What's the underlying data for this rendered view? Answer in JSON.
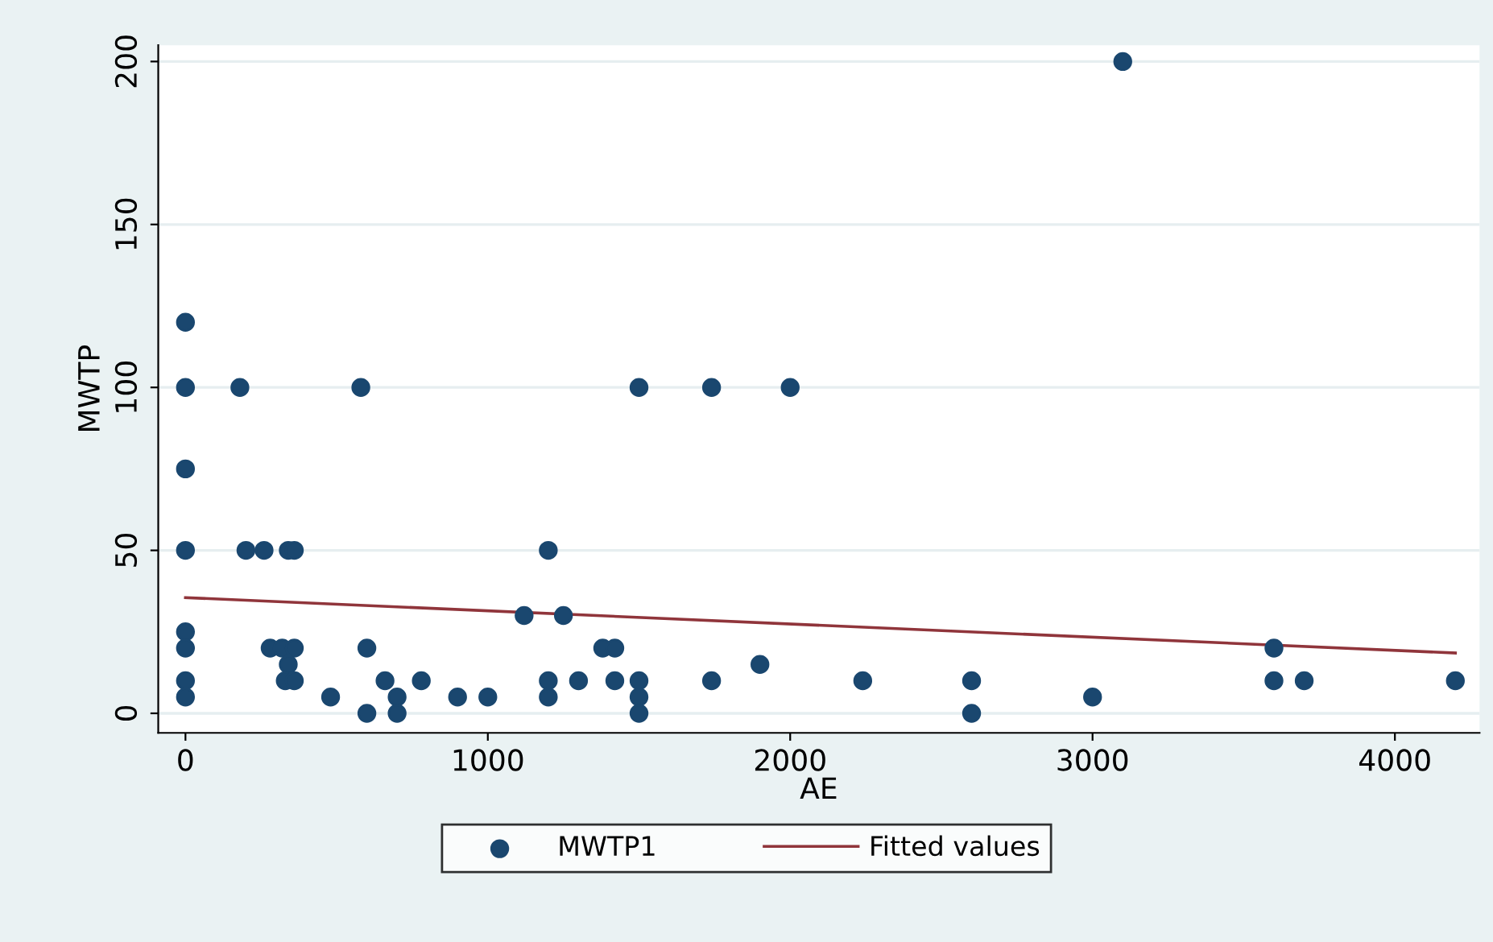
{
  "chart_data": {
    "type": "scatter",
    "xlabel": "AE",
    "ylabel": "MWTP",
    "xlim": [
      -90,
      4280
    ],
    "ylim": [
      -6,
      205
    ],
    "xticks": [
      0,
      1000,
      2000,
      3000,
      4000
    ],
    "yticks": [
      0,
      50,
      100,
      150,
      200
    ],
    "grid": "y",
    "legend": "bottom",
    "marker": "circle",
    "series": [
      {
        "name": "MWTP1",
        "color": "#1a476f",
        "x": [
          0,
          0,
          0,
          0,
          0,
          0,
          0,
          0,
          180,
          580,
          1500,
          1740,
          2000,
          3100,
          200,
          260,
          340,
          360,
          1200,
          1120,
          1250,
          280,
          320,
          360,
          600,
          1380,
          1420,
          3600,
          340,
          1900,
          330,
          360,
          660,
          780,
          1200,
          1300,
          1420,
          1500,
          1740,
          2240,
          2600,
          3600,
          3700,
          4200,
          480,
          700,
          900,
          1000,
          1200,
          1500,
          3000,
          600,
          700,
          1500,
          2600
        ],
        "values": [
          120,
          100,
          75,
          50,
          25,
          20,
          10,
          5,
          100,
          100,
          100,
          100,
          100,
          200,
          50,
          50,
          50,
          50,
          50,
          30,
          30,
          20,
          20,
          20,
          20,
          20,
          20,
          20,
          15,
          15,
          10,
          10,
          10,
          10,
          10,
          10,
          10,
          10,
          10,
          10,
          10,
          10,
          10,
          10,
          5,
          5,
          5,
          5,
          5,
          5,
          5,
          0,
          0,
          0,
          0
        ]
      },
      {
        "name": "Fitted values",
        "type": "line",
        "color": "#90353b",
        "marker": "none",
        "x": [
          0,
          4200
        ],
        "values": [
          35.5,
          18.5
        ]
      }
    ]
  }
}
